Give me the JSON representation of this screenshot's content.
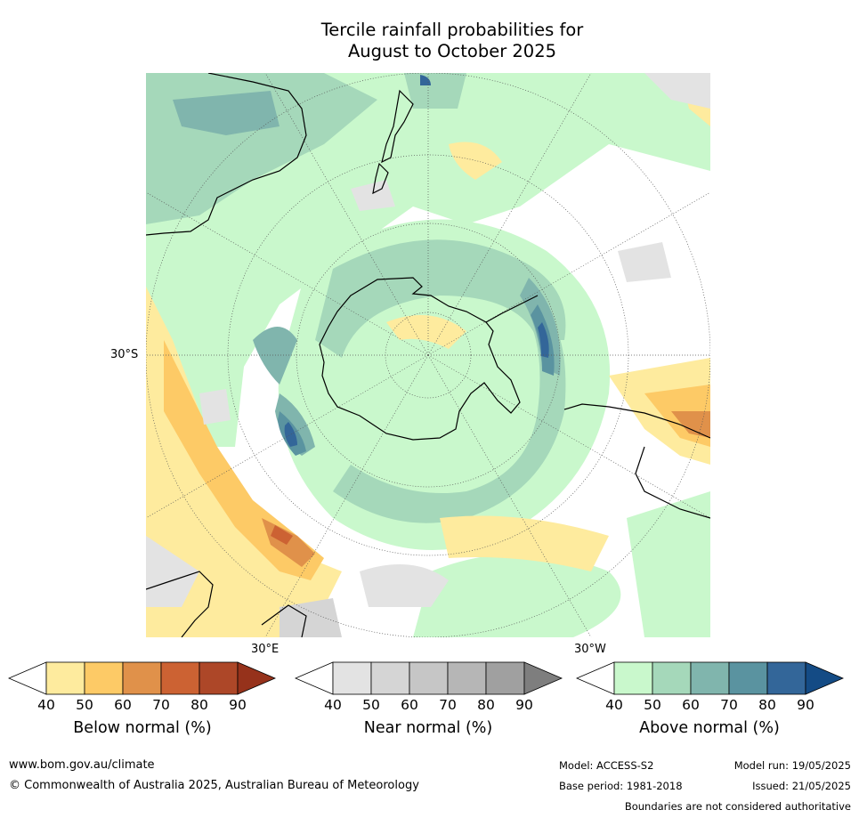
{
  "title": {
    "line1": "Tercile rainfall probabilities for",
    "line2": "August to October 2025"
  },
  "map": {
    "projection": "south polar stereographic",
    "lat_labels": [
      "30°S"
    ],
    "lon_labels": [
      "30°E",
      "30°W"
    ],
    "colors": {
      "ocean_bg": "#ffffff",
      "coastline": "#000000",
      "boundary": "#8c8c8c",
      "graticule": "#555555"
    }
  },
  "colorbars": [
    {
      "label": "Below normal (%)",
      "ticks": [
        "40",
        "50",
        "60",
        "70",
        "80",
        "90"
      ],
      "colors": [
        "#ffffff",
        "#feeb9e",
        "#fdca66",
        "#e0914a",
        "#cc6233",
        "#ad4728",
        "#96321b"
      ]
    },
    {
      "label": "Near normal (%)",
      "ticks": [
        "40",
        "50",
        "60",
        "70",
        "80",
        "90"
      ],
      "colors": [
        "#ffffff",
        "#e3e3e3",
        "#d5d5d5",
        "#c6c6c6",
        "#b6b6b6",
        "#a0a0a0",
        "#7e7e7e"
      ]
    },
    {
      "label": "Above normal (%)",
      "ticks": [
        "40",
        "50",
        "60",
        "70",
        "80",
        "90"
      ],
      "colors": [
        "#ffffff",
        "#c9f8cc",
        "#a5d8ba",
        "#80b5ad",
        "#5a93a0",
        "#336699",
        "#144b85"
      ]
    }
  ],
  "footer": {
    "website": "www.bom.gov.au/climate",
    "copyright": "© Commonwealth of Australia 2025, Australian Bureau of Meteorology",
    "model": "Model: ACCESS-S2",
    "base_period": "Base period: 1981-2018",
    "model_run": "Model run: 19/05/2025",
    "issued": "Issued: 21/05/2025",
    "disclaimer": "Boundaries are not considered authoritative"
  }
}
